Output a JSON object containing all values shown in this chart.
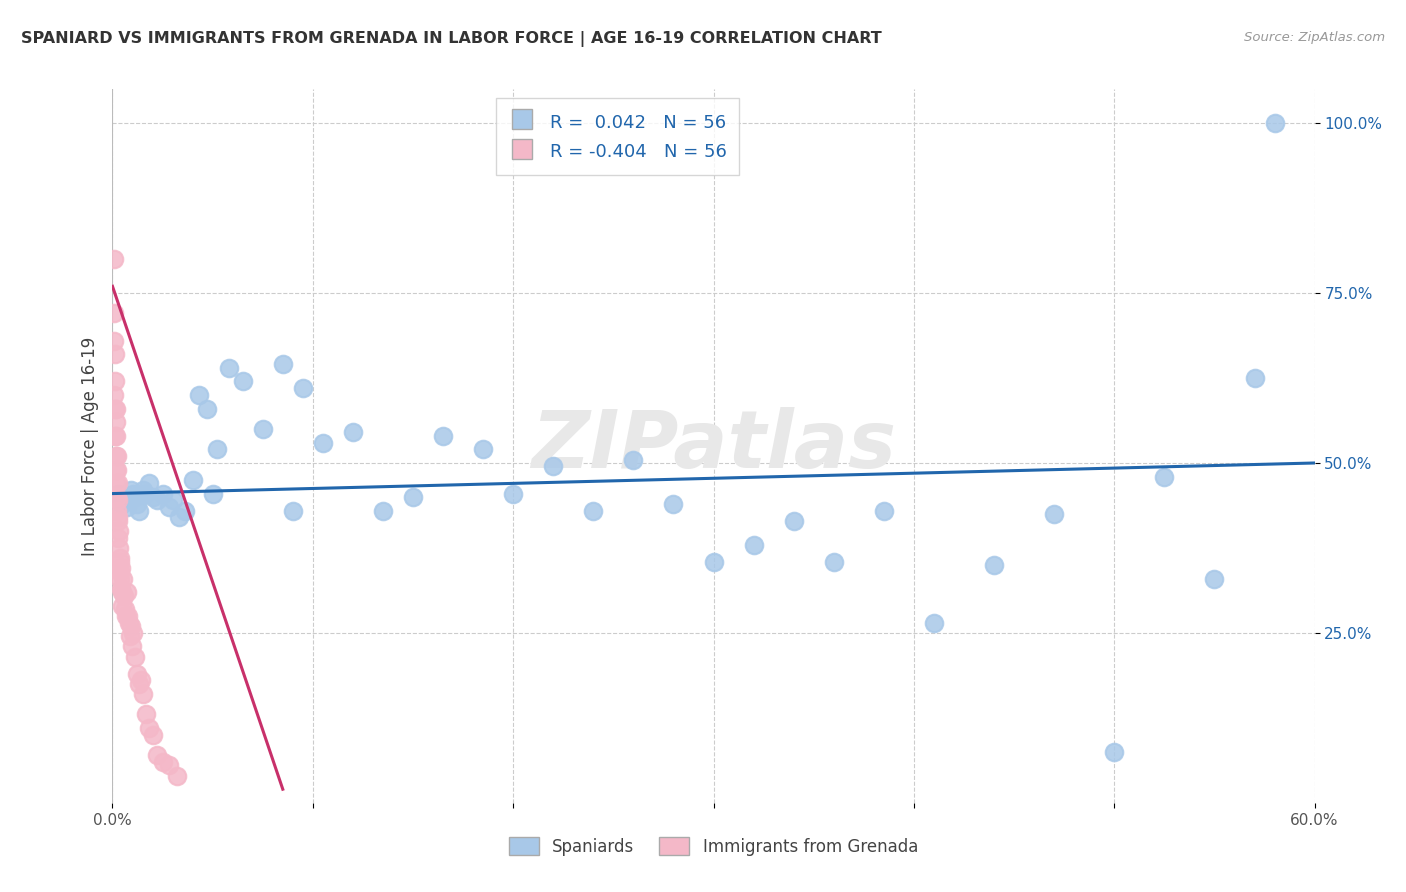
{
  "title": "SPANIARD VS IMMIGRANTS FROM GRENADA IN LABOR FORCE | AGE 16-19 CORRELATION CHART",
  "source": "Source: ZipAtlas.com",
  "ylabel": "In Labor Force | Age 16-19",
  "xlim": [
    0.0,
    0.6
  ],
  "ylim": [
    0.0,
    1.05
  ],
  "xticks": [
    0.0,
    0.1,
    0.2,
    0.3,
    0.4,
    0.5,
    0.6
  ],
  "xticklabels": [
    "0.0%",
    "",
    "",
    "",
    "",
    "",
    "60.0%"
  ],
  "ytick_positions": [
    0.25,
    0.5,
    0.75,
    1.0
  ],
  "ytick_labels": [
    "25.0%",
    "50.0%",
    "75.0%",
    "100.0%"
  ],
  "legend_blue_label": "Spaniards",
  "legend_pink_label": "Immigrants from Grenada",
  "R_blue": 0.042,
  "N_blue": 56,
  "R_pink": -0.404,
  "N_pink": 56,
  "blue_dot_color": "#a8c8e8",
  "pink_dot_color": "#f4b8c8",
  "blue_line_color": "#2166ac",
  "pink_line_color": "#c8306a",
  "label_color": "#2166ac",
  "title_color": "#333333",
  "source_color": "#999999",
  "grid_color": "#cccccc",
  "watermark_color": "#e8e8e8",
  "blue_scatter_x": [
    0.003,
    0.004,
    0.005,
    0.006,
    0.007,
    0.008,
    0.009,
    0.01,
    0.011,
    0.012,
    0.013,
    0.015,
    0.016,
    0.018,
    0.02,
    0.022,
    0.025,
    0.028,
    0.03,
    0.033,
    0.036,
    0.04,
    0.043,
    0.047,
    0.052,
    0.058,
    0.065,
    0.075,
    0.085,
    0.095,
    0.105,
    0.12,
    0.135,
    0.15,
    0.165,
    0.185,
    0.2,
    0.22,
    0.24,
    0.26,
    0.28,
    0.3,
    0.32,
    0.34,
    0.36,
    0.385,
    0.41,
    0.44,
    0.47,
    0.5,
    0.525,
    0.55,
    0.57,
    0.58,
    0.05,
    0.09
  ],
  "blue_scatter_y": [
    0.455,
    0.445,
    0.44,
    0.45,
    0.435,
    0.445,
    0.46,
    0.455,
    0.45,
    0.44,
    0.43,
    0.46,
    0.455,
    0.47,
    0.45,
    0.445,
    0.455,
    0.435,
    0.445,
    0.42,
    0.43,
    0.475,
    0.6,
    0.58,
    0.52,
    0.64,
    0.62,
    0.55,
    0.645,
    0.61,
    0.53,
    0.545,
    0.43,
    0.45,
    0.54,
    0.52,
    0.455,
    0.495,
    0.43,
    0.505,
    0.44,
    0.355,
    0.38,
    0.415,
    0.355,
    0.43,
    0.265,
    0.35,
    0.425,
    0.075,
    0.48,
    0.33,
    0.625,
    1.0,
    0.455,
    0.43
  ],
  "pink_scatter_x": [
    0.0008,
    0.0008,
    0.001,
    0.001,
    0.0012,
    0.0012,
    0.0014,
    0.0014,
    0.0016,
    0.0016,
    0.0018,
    0.0018,
    0.002,
    0.002,
    0.0022,
    0.0022,
    0.0024,
    0.0024,
    0.0026,
    0.0026,
    0.0028,
    0.003,
    0.003,
    0.0032,
    0.0034,
    0.0036,
    0.0038,
    0.004,
    0.004,
    0.0042,
    0.0044,
    0.0046,
    0.005,
    0.0054,
    0.0058,
    0.0062,
    0.0066,
    0.007,
    0.0075,
    0.008,
    0.0085,
    0.009,
    0.0095,
    0.01,
    0.011,
    0.012,
    0.013,
    0.014,
    0.015,
    0.0165,
    0.018,
    0.02,
    0.022,
    0.025,
    0.028,
    0.032
  ],
  "pink_scatter_y": [
    0.8,
    0.72,
    0.68,
    0.6,
    0.66,
    0.58,
    0.62,
    0.54,
    0.58,
    0.51,
    0.56,
    0.49,
    0.54,
    0.47,
    0.51,
    0.45,
    0.49,
    0.43,
    0.47,
    0.415,
    0.445,
    0.42,
    0.39,
    0.4,
    0.375,
    0.355,
    0.34,
    0.36,
    0.33,
    0.345,
    0.315,
    0.31,
    0.29,
    0.33,
    0.305,
    0.285,
    0.275,
    0.31,
    0.275,
    0.265,
    0.245,
    0.26,
    0.23,
    0.25,
    0.215,
    0.19,
    0.175,
    0.18,
    0.16,
    0.13,
    0.11,
    0.1,
    0.07,
    0.06,
    0.055,
    0.04
  ],
  "blue_trend_x": [
    0.0,
    0.6
  ],
  "blue_trend_y": [
    0.455,
    0.5
  ],
  "pink_trend_x": [
    0.0,
    0.085
  ],
  "pink_trend_y": [
    0.76,
    0.02
  ]
}
